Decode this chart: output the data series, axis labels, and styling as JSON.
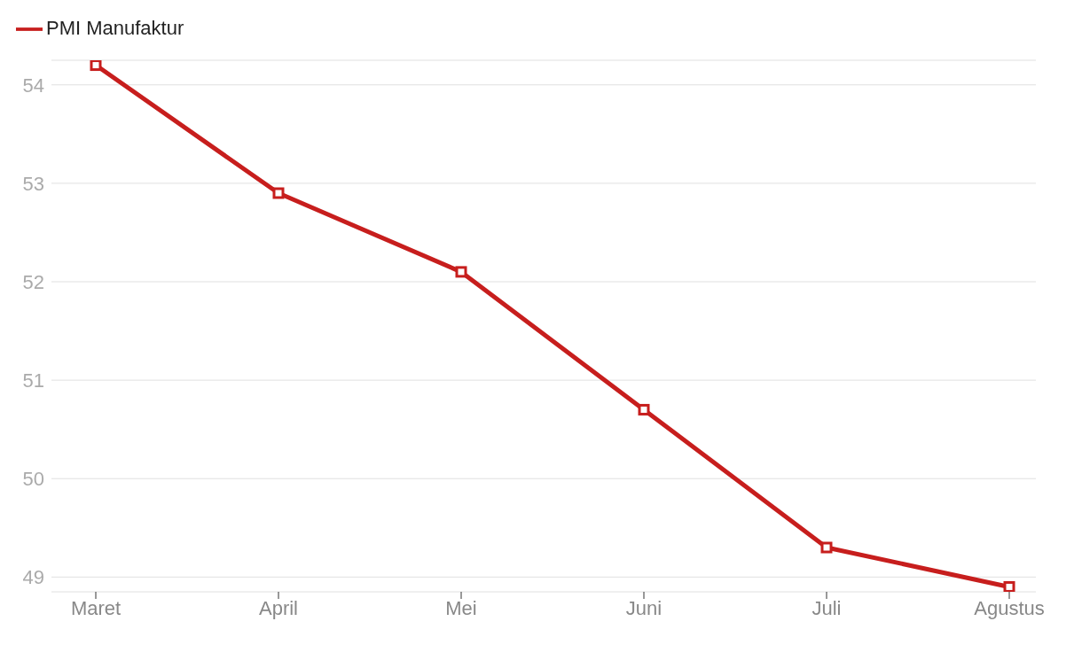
{
  "chart_data": {
    "type": "line",
    "categories": [
      "Maret",
      "April",
      "Mei",
      "Juni",
      "Juli",
      "Agustus"
    ],
    "series": [
      {
        "name": "PMI Manufaktur",
        "color": "#c71e1d",
        "values": [
          54.2,
          52.9,
          52.1,
          50.7,
          49.3,
          48.9
        ]
      }
    ],
    "ylim": [
      48.85,
      54.25
    ],
    "yticks": [
      49,
      50,
      51,
      52,
      53,
      54
    ],
    "grid": "y",
    "legend": "top left",
    "marker": "square",
    "line_style": "solid"
  }
}
